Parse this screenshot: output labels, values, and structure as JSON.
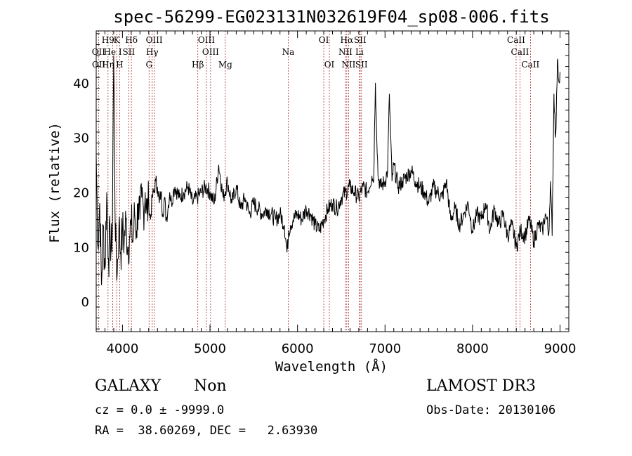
{
  "chart_data": {
    "type": "line",
    "title": "spec-56299-EG023131N032619F04_sp08-006.fits",
    "xlabel": "Wavelength (Å)",
    "ylabel": "Flux (relative)",
    "xlim": [
      3700,
      9100
    ],
    "ylim": [
      -5.5,
      49.5
    ],
    "x_ticks": [
      4000,
      5000,
      6000,
      7000,
      8000,
      9000
    ],
    "y_ticks": [
      0,
      10,
      20,
      30,
      40
    ],
    "grid": false,
    "series": [
      {
        "values_x": [
          3700,
          3720,
          3740,
          3760,
          3780,
          3800,
          3820,
          3840,
          3860,
          3880,
          3900,
          3920,
          3940,
          3960,
          3980,
          4000,
          4020,
          4040,
          4060,
          4080,
          4100,
          4120,
          4140,
          4160,
          4180,
          4200,
          4220,
          4240,
          4260,
          4280,
          4300,
          4320,
          4340,
          4360,
          4380,
          4400,
          4420,
          4440,
          4460,
          4480,
          4500,
          4520,
          4540,
          4560,
          4580,
          4600,
          4650,
          4700,
          4750,
          4800,
          4850,
          4900,
          4950,
          5000,
          5050,
          5100,
          5150,
          5200,
          5250,
          5300,
          5350,
          5400,
          5450,
          5500,
          5550,
          5600,
          5650,
          5700,
          5750,
          5800,
          5850,
          5880,
          5900,
          5920,
          5950,
          6000,
          6050,
          6100,
          6150,
          6200,
          6250,
          6300,
          6350,
          6400,
          6450,
          6500,
          6550,
          6600,
          6650,
          6700,
          6750,
          6800,
          6850,
          6870,
          6890,
          6900,
          6920,
          6950,
          7000,
          7030,
          7050,
          7080,
          7100,
          7150,
          7200,
          7250,
          7300,
          7350,
          7400,
          7450,
          7500,
          7550,
          7600,
          7650,
          7700,
          7750,
          7800,
          7850,
          7900,
          7950,
          8000,
          8050,
          8100,
          8150,
          8200,
          8250,
          8300,
          8350,
          8400,
          8450,
          8500,
          8550,
          8600,
          8650,
          8700,
          8750,
          8800,
          8830,
          8850,
          8870,
          8890,
          8910,
          8930,
          8950,
          8970,
          8990,
          9000
        ],
        "values_y": [
          27,
          10,
          18,
          3,
          14,
          6,
          20,
          8,
          12,
          9,
          45,
          11,
          5,
          14,
          9,
          13,
          11,
          15,
          10,
          12,
          14,
          11,
          16,
          13,
          18,
          15,
          19,
          17,
          20,
          16,
          18,
          15,
          19,
          20,
          22,
          21,
          18,
          20,
          16,
          19,
          15,
          17,
          20,
          18,
          20,
          21,
          19,
          20,
          21,
          18,
          19,
          20,
          21,
          20,
          18,
          25,
          19,
          22,
          18,
          21,
          17,
          19,
          16,
          18,
          17,
          16,
          17,
          16,
          15,
          16,
          14,
          9,
          13,
          14,
          15,
          16,
          15,
          17,
          16,
          14,
          13,
          15,
          17,
          18,
          17,
          19,
          20,
          21,
          20,
          19,
          21,
          20,
          23,
          22,
          40,
          34,
          23,
          21,
          22,
          24,
          38,
          22,
          25,
          21,
          22,
          23,
          24,
          22,
          21,
          20,
          18,
          21,
          20,
          19,
          22,
          15,
          17,
          14,
          16,
          18,
          13,
          16,
          15,
          18,
          13,
          17,
          14,
          16,
          12,
          14,
          10,
          13,
          12,
          15,
          11,
          14,
          13,
          16,
          15,
          12,
          22,
          12,
          38,
          30,
          44,
          40,
          42
        ]
      }
    ],
    "line_markers": [
      {
        "name": "OII",
        "x": 3727,
        "row": 2
      },
      {
        "name": "OII",
        "x": 3729,
        "row": 3
      },
      {
        "name": "H9",
        "x": 3835,
        "row": 1
      },
      {
        "name": "He I",
        "x": 3889,
        "row": 2
      },
      {
        "name": "Hη",
        "x": 3835,
        "row": 3
      },
      {
        "name": "K",
        "x": 3934,
        "row": 1
      },
      {
        "name": "H",
        "x": 3968,
        "row": 3
      },
      {
        "name": "Hδ",
        "x": 4102,
        "row": 1
      },
      {
        "name": "SII",
        "x": 4072,
        "row": 2
      },
      {
        "name": "OIII",
        "x": 4363,
        "row": 1
      },
      {
        "name": "Hγ",
        "x": 4340,
        "row": 2
      },
      {
        "name": "G",
        "x": 4304,
        "row": 3
      },
      {
        "name": "OIII",
        "x": 4959,
        "row": 1
      },
      {
        "name": "OIII",
        "x": 5007,
        "row": 2
      },
      {
        "name": "Hβ",
        "x": 4861,
        "row": 3
      },
      {
        "name": "Mg",
        "x": 5175,
        "row": 3
      },
      {
        "name": "Na",
        "x": 5894,
        "row": 2
      },
      {
        "name": "OI",
        "x": 6300,
        "row": 1
      },
      {
        "name": "OI",
        "x": 6364,
        "row": 3
      },
      {
        "name": "Hα",
        "x": 6563,
        "row": 1
      },
      {
        "name": "SII",
        "x": 6716,
        "row": 1
      },
      {
        "name": "NII",
        "x": 6548,
        "row": 2
      },
      {
        "name": "Li",
        "x": 6708,
        "row": 2
      },
      {
        "name": "NII",
        "x": 6584,
        "row": 3
      },
      {
        "name": "SII",
        "x": 6731,
        "row": 3
      },
      {
        "name": "CaII",
        "x": 8498,
        "row": 1
      },
      {
        "name": "CaII",
        "x": 8542,
        "row": 2
      },
      {
        "name": "CaII",
        "x": 8662,
        "row": 3
      }
    ],
    "marker_lines_x": [
      3727,
      3835,
      3889,
      3934,
      3968,
      4072,
      4102,
      4304,
      4340,
      4363,
      4861,
      4959,
      5007,
      5175,
      5894,
      6300,
      6364,
      6548,
      6563,
      6584,
      6708,
      6716,
      6731,
      8498,
      8542,
      8662
    ]
  },
  "info": {
    "class": "GALAXY",
    "subclass": "Non",
    "survey": "LAMOST DR3",
    "cz": "cz = 0.0 ± -9999.0",
    "obs_date": "Obs-Date: 20130106",
    "coords": "RA =  38.60269, DEC =   2.63930"
  },
  "colors": {
    "spectrum": "#000000",
    "marker_line": "#b03030",
    "text": "#000000"
  }
}
